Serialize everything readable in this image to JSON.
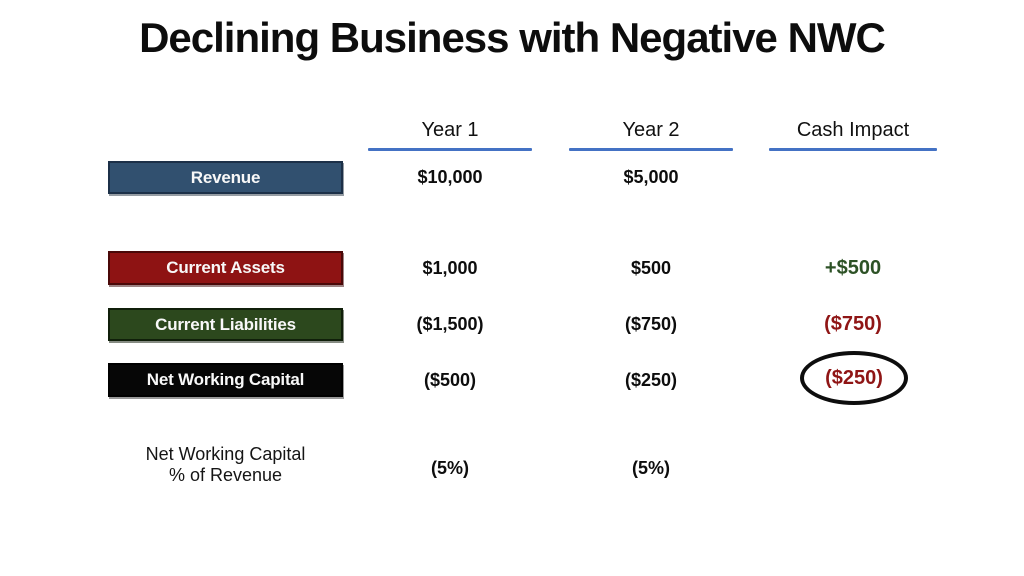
{
  "slide": {
    "title": "Declining Business with Negative NWC"
  },
  "table": {
    "columns": [
      {
        "label": "Year 1"
      },
      {
        "label": "Year 2"
      },
      {
        "label": "Cash Impact"
      }
    ],
    "rows": [
      {
        "label": "Revenue",
        "box_color": "#31506F",
        "year1": "$10,000",
        "year2": "$5,000",
        "cash": ""
      },
      {
        "label": "Current Assets",
        "box_color": "#8E1313",
        "year1": "$1,000",
        "year2": "$500",
        "cash": "+$500",
        "cash_color": "#2D5226"
      },
      {
        "label": "Current Liabilities",
        "box_color": "#2C481D",
        "year1": "($1,500)",
        "year2": "($750)",
        "cash": "($750)",
        "cash_color": "#8F1515"
      },
      {
        "label": "Net Working Capital",
        "box_color": "#060606",
        "year1": "($500)",
        "year2": "($250)",
        "cash": "($250)",
        "cash_color": "#8F1515",
        "cash_annotation": "circled"
      }
    ],
    "footer_row": {
      "label_line1": "Net Working Capital",
      "label_line2": "% of Revenue",
      "year1": "(5%)",
      "year2": "(5%)"
    }
  },
  "colors": {
    "header_underline": "#4472C4",
    "positive_cash": "#2D5226",
    "negative_cash": "#8F1515",
    "circle_stroke": "#0D0D0D",
    "title_text": "#0D0D0D"
  }
}
